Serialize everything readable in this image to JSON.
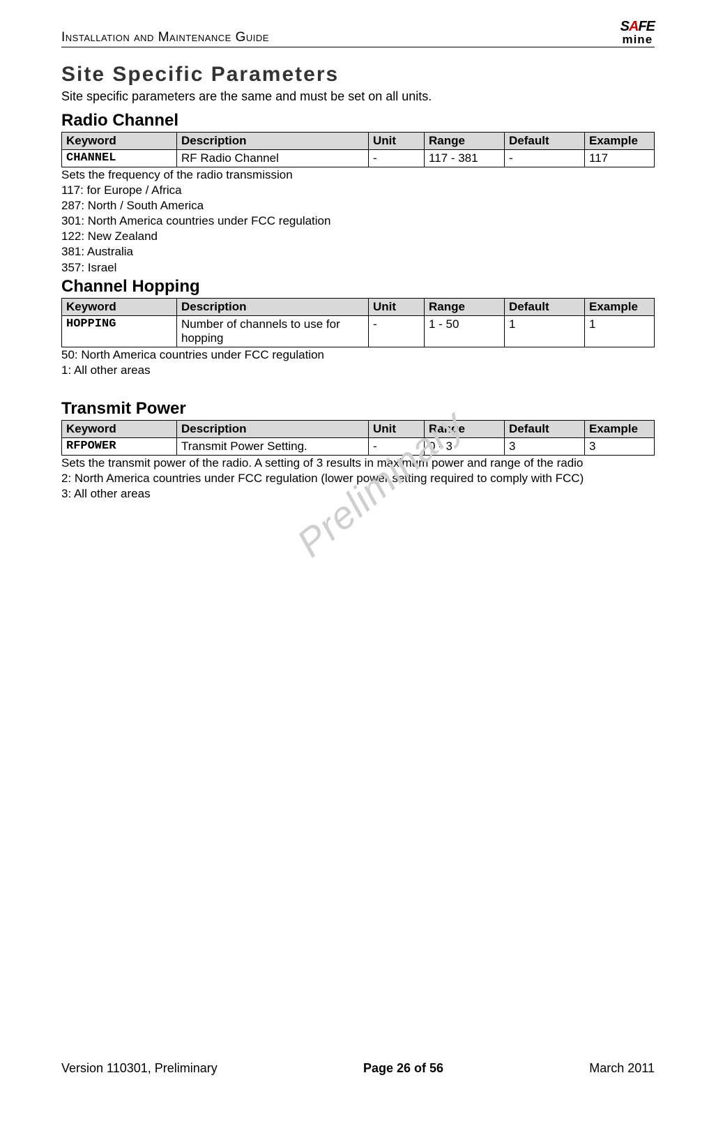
{
  "header": {
    "title": "Installation and Maintenance Guide",
    "logo_top_before": "S",
    "logo_top_accent": "A",
    "logo_top_after": "FE",
    "logo_bottom": "mine"
  },
  "main_heading": "Site Specific Parameters",
  "intro_text": "Site specific parameters are the same and must be set on all units.",
  "watermark": "Preliminary",
  "sections": [
    {
      "heading": "Radio Channel",
      "table": {
        "headers": [
          "Keyword",
          "Description",
          "Unit",
          "Range",
          "Default",
          "Example"
        ],
        "row": {
          "keyword": "CHANNEL",
          "description": "RF Radio Channel",
          "unit": "-",
          "range": "117 - 381",
          "default": "-",
          "example": "117"
        }
      },
      "notes": [
        "Sets the frequency of the radio transmission",
        "117: for Europe / Africa",
        "287: North / South America",
        "301: North America countries under FCC regulation",
        "122: New Zealand",
        "381: Australia",
        "357: Israel"
      ]
    },
    {
      "heading": "Channel Hopping",
      "table": {
        "headers": [
          "Keyword",
          "Description",
          "Unit",
          "Range",
          "Default",
          "Example"
        ],
        "row": {
          "keyword": "HOPPING",
          "description": "Number of channels to use for hopping",
          "unit": "-",
          "range": "1 - 50",
          "default": "1",
          "example": "1"
        }
      },
      "notes": [
        "50: North America countries under FCC regulation",
        "1: All other areas"
      ]
    },
    {
      "heading": "Transmit Power",
      "table": {
        "headers": [
          "Keyword",
          "Description",
          "Unit",
          "Range",
          "Default",
          "Example"
        ],
        "row": {
          "keyword": "RFPOWER",
          "description": "Transmit Power Setting.",
          "unit": "-",
          "range": "0 - 3",
          "default": "3",
          "example": "3"
        }
      },
      "notes": [
        "Sets the transmit power of the radio. A setting of 3 results in maximum power and range of the radio",
        "2: North America countries under FCC regulation (lower power setting required to comply with FCC)",
        "3: All other areas"
      ]
    }
  ],
  "footer": {
    "left": "Version 110301, Preliminary",
    "center": "Page 26 of 56",
    "right": "March 2011"
  }
}
